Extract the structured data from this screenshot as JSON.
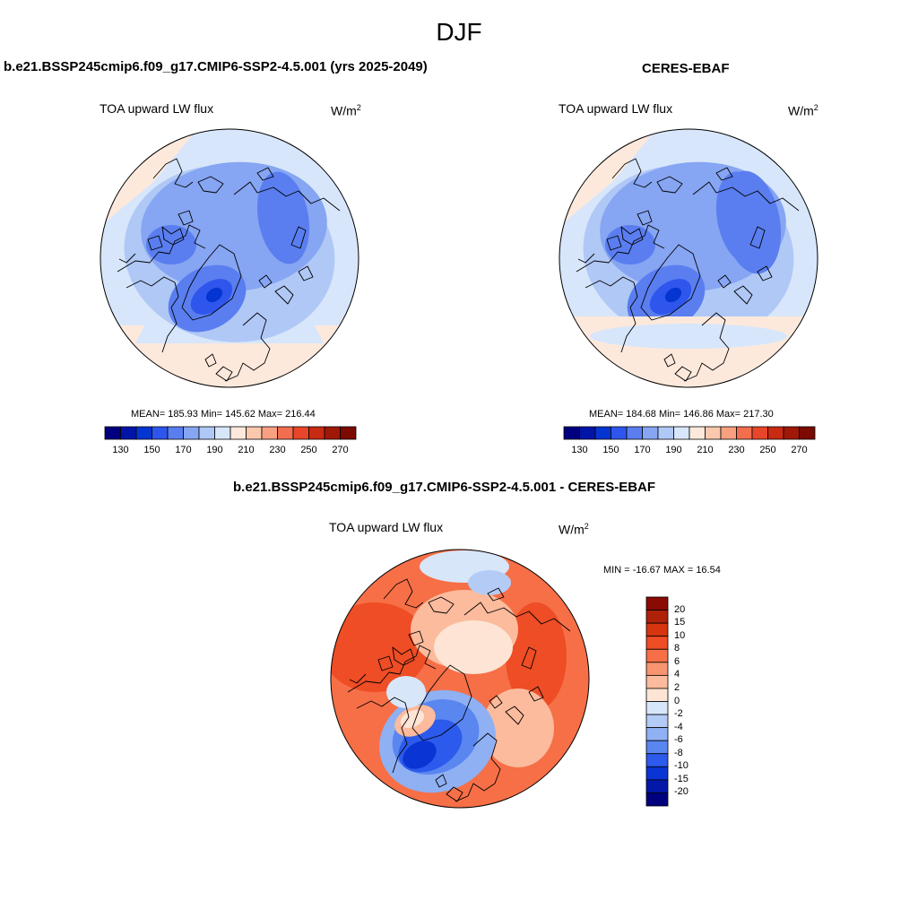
{
  "title": "DJF",
  "panels": [
    {
      "id": "model",
      "heading": "b.e21.BSSP245cmip6.f09_g17.CMIP6-SSP2-4.5.001 (yrs 2025-2049)",
      "variable": "TOA upward LW flux",
      "units_base": "W/m",
      "units_exp": "2",
      "stats": "MEAN= 185.93  Min= 145.62  Max= 216.44",
      "colorbar": {
        "colors": [
          "#00007f",
          "#0015a8",
          "#0535d0",
          "#2f56ec",
          "#5a7ef0",
          "#86a5f2",
          "#b0c8f6",
          "#d7e6fb",
          "#fde9dc",
          "#fbc8ae",
          "#f8a07f",
          "#f26e4e",
          "#e8462a",
          "#c92a12",
          "#a01808",
          "#7a0a02"
        ],
        "labels": [
          "130",
          "150",
          "170",
          "190",
          "210",
          "230",
          "250",
          "270"
        ]
      }
    },
    {
      "id": "obs",
      "heading": "CERES-EBAF",
      "variable": "TOA upward LW flux",
      "units_base": "W/m",
      "units_exp": "2",
      "stats": "MEAN= 184.68  Min= 146.86  Max= 217.30",
      "colorbar": {
        "colors": [
          "#00007f",
          "#0015a8",
          "#0535d0",
          "#2f56ec",
          "#5a7ef0",
          "#86a5f2",
          "#b0c8f6",
          "#d7e6fb",
          "#fde9dc",
          "#fbc8ae",
          "#f8a07f",
          "#f26e4e",
          "#e8462a",
          "#c92a12",
          "#a01808",
          "#7a0a02"
        ],
        "labels": [
          "130",
          "150",
          "170",
          "190",
          "210",
          "230",
          "250",
          "270"
        ]
      }
    },
    {
      "id": "diff",
      "heading": "b.e21.BSSP245cmip6.f09_g17.CMIP6-SSP2-4.5.001 - CERES-EBAF",
      "variable": "TOA upward LW flux",
      "units_base": "W/m",
      "units_exp": "2",
      "stats": "MIN = -16.67 MAX =  16.54",
      "colorbar": {
        "colors": [
          "#8a0b03",
          "#b0210a",
          "#d6350f",
          "#ee4d25",
          "#f66f47",
          "#f99470",
          "#fbbb9c",
          "#fde4d4",
          "#d8e6fa",
          "#b4cbf6",
          "#8fb0f3",
          "#5a86f0",
          "#2c5aec",
          "#0b34d4",
          "#0418a8",
          "#00007f"
        ],
        "labels": [
          "20",
          "15",
          "10",
          "8",
          "6",
          "4",
          "2",
          "0",
          "-2",
          "-4",
          "-6",
          "-8",
          "-10",
          "-15",
          "-20"
        ]
      }
    }
  ]
}
